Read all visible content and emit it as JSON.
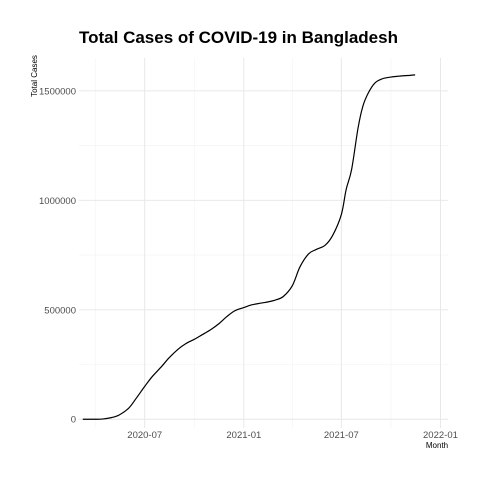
{
  "chart_data": {
    "type": "line",
    "title": "Total Cases of COVID-19 in Bangladesh",
    "xlabel": "Month",
    "ylabel": "Total Cases",
    "xlim": [
      "2020-03-01",
      "2022-01-15"
    ],
    "ylim": [
      -40000,
      1650000
    ],
    "x_ticks": [
      "2020-07",
      "2021-01",
      "2021-07",
      "2022-01"
    ],
    "y_ticks": [
      "0",
      "500000",
      "1000000",
      "1500000"
    ],
    "y_tick_values": [
      0,
      500000,
      1000000,
      1500000
    ],
    "grid": true,
    "series": [
      {
        "x": [
          "2020-03-08",
          "2020-04-01",
          "2020-04-15",
          "2020-05-01",
          "2020-05-15",
          "2020-06-01",
          "2020-06-15",
          "2020-07-01",
          "2020-07-15",
          "2020-08-01",
          "2020-08-15",
          "2020-09-01",
          "2020-09-15",
          "2020-10-01",
          "2020-10-15",
          "2020-11-01",
          "2020-11-15",
          "2020-12-01",
          "2020-12-15",
          "2021-01-01",
          "2021-01-15",
          "2021-02-01",
          "2021-02-15",
          "2021-03-01",
          "2021-03-15",
          "2021-04-01",
          "2021-04-15",
          "2021-05-01",
          "2021-05-15",
          "2021-06-01",
          "2021-06-15",
          "2021-07-01",
          "2021-07-10",
          "2021-07-20",
          "2021-08-01",
          "2021-08-10",
          "2021-08-20",
          "2021-09-01",
          "2021-09-15",
          "2021-10-01",
          "2021-10-15",
          "2021-11-01",
          "2021-11-15"
        ],
        "y": [
          0,
          0,
          1500,
          8000,
          20000,
          50000,
          95000,
          150000,
          195000,
          240000,
          280000,
          320000,
          345000,
          365000,
          385000,
          410000,
          435000,
          470000,
          495000,
          510000,
          522000,
          530000,
          536000,
          545000,
          560000,
          610000,
          695000,
          755000,
          775000,
          795000,
          840000,
          935000,
          1050000,
          1140000,
          1330000,
          1430000,
          1490000,
          1535000,
          1555000,
          1563000,
          1567000,
          1570000,
          1573000
        ]
      }
    ]
  }
}
